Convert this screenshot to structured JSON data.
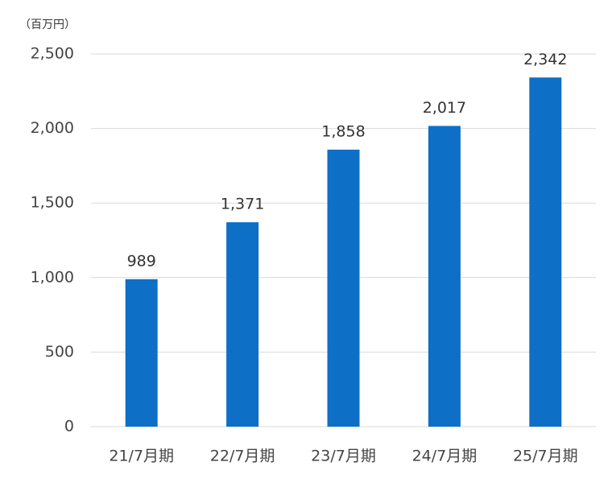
{
  "chart_data": {
    "type": "bar",
    "unit_label": "（百万円）",
    "categories": [
      "21/7月期",
      "22/7月期",
      "23/7月期",
      "24/7月期",
      "25/7月期"
    ],
    "values": [
      989,
      1371,
      1858,
      2017,
      2342
    ],
    "value_labels": [
      "989",
      "1,371",
      "1,858",
      "2,017",
      "2,342"
    ],
    "color": "#0e6fc7",
    "ylim": [
      0,
      2500
    ],
    "yticks": [
      0,
      500,
      {
        "value": 1000,
        "label": "1,000"
      },
      {
        "value": 1500,
        "label": "1,500"
      },
      {
        "value": 2000,
        "label": "2,000"
      },
      {
        "value": 2500,
        "label": "2,500"
      }
    ],
    "grid": true
  }
}
